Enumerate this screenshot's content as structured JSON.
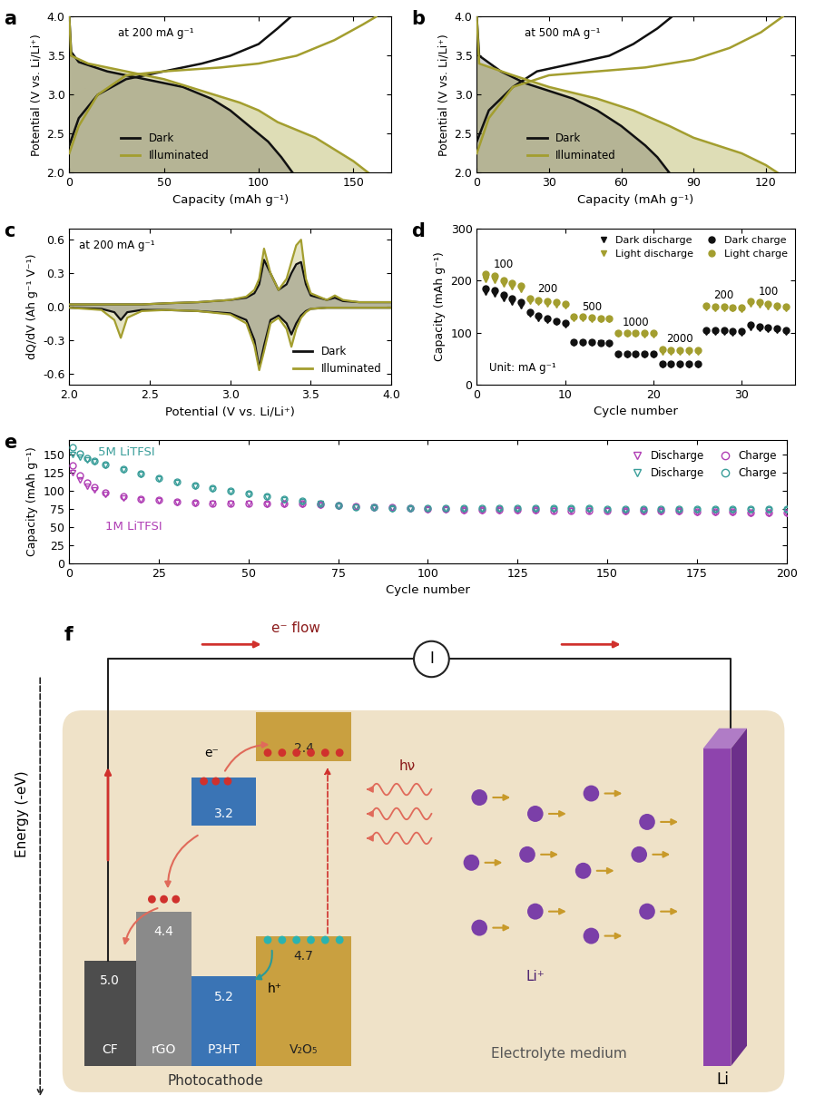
{
  "chart_data": [
    {
      "panel_label": "a",
      "type": "line",
      "x_label": "Capacity (mAh g⁻¹)",
      "y_label": "Potential (V vs. Li/Li⁺)",
      "annotation": "at 200 mA g⁻¹",
      "xlim": [
        0,
        170
      ],
      "xticks": [
        0,
        50,
        100,
        150
      ],
      "ylim": [
        2.0,
        4.0
      ],
      "yticks": [
        2.0,
        2.5,
        3.0,
        3.5,
        4.0
      ],
      "legend": "lower left",
      "series": [
        {
          "name": "Dark",
          "color": "#111111",
          "discharge": {
            "x": [
              0,
              1,
              5,
              20,
              40,
              60,
              75,
              85,
              95,
              105,
              112,
              118
            ],
            "values": [
              4.0,
              3.55,
              3.42,
              3.3,
              3.2,
              3.1,
              2.95,
              2.8,
              2.6,
              2.4,
              2.2,
              2.0
            ]
          },
          "charge": {
            "x": [
              0,
              5,
              15,
              30,
              50,
              70,
              85,
              100,
              110,
              117
            ],
            "values": [
              2.35,
              2.7,
              3.0,
              3.2,
              3.3,
              3.4,
              3.5,
              3.65,
              3.85,
              4.0
            ]
          }
        },
        {
          "name": "Illuminated",
          "color": "#a39e2f",
          "discharge": {
            "x": [
              0,
              1,
              10,
              30,
              50,
              70,
              90,
              100,
              110,
              120,
              130,
              140,
              150,
              158
            ],
            "values": [
              4.0,
              3.5,
              3.4,
              3.3,
              3.2,
              3.05,
              2.9,
              2.8,
              2.65,
              2.55,
              2.45,
              2.3,
              2.15,
              2.0
            ]
          },
          "charge": {
            "x": [
              0,
              5,
              15,
              30,
              50,
              80,
              100,
              120,
              140,
              155,
              162
            ],
            "values": [
              2.25,
              2.6,
              3.0,
              3.25,
              3.3,
              3.35,
              3.4,
              3.5,
              3.7,
              3.9,
              4.0
            ]
          }
        }
      ]
    },
    {
      "panel_label": "b",
      "type": "line",
      "x_label": "Capacity (mAh g⁻¹)",
      "y_label": "Potential (V vs. Li/Li⁺)",
      "annotation": "at 500 mA g⁻¹",
      "xlim": [
        0,
        132
      ],
      "xticks": [
        0,
        30,
        60,
        90,
        120
      ],
      "ylim": [
        2.0,
        4.0
      ],
      "yticks": [
        2.0,
        2.5,
        3.0,
        3.5,
        4.0
      ],
      "legend": "lower left",
      "series": [
        {
          "name": "Dark",
          "color": "#111111",
          "discharge": {
            "x": [
              0,
              1,
              10,
              20,
              30,
              40,
              50,
              60,
              70,
              75,
              80
            ],
            "values": [
              4.0,
              3.5,
              3.3,
              3.15,
              3.05,
              2.95,
              2.8,
              2.6,
              2.35,
              2.2,
              2.0
            ]
          },
          "charge": {
            "x": [
              0,
              5,
              15,
              25,
              40,
              55,
              65,
              75,
              81
            ],
            "values": [
              2.4,
              2.8,
              3.1,
              3.3,
              3.4,
              3.5,
              3.65,
              3.85,
              4.0
            ]
          }
        },
        {
          "name": "Illuminated",
          "color": "#a39e2f",
          "discharge": {
            "x": [
              0,
              1,
              15,
              30,
              50,
              65,
              80,
              90,
              100,
              110,
              120,
              125
            ],
            "values": [
              4.0,
              3.4,
              3.25,
              3.1,
              2.95,
              2.8,
              2.6,
              2.45,
              2.35,
              2.25,
              2.1,
              2.0
            ]
          },
          "charge": {
            "x": [
              0,
              5,
              15,
              30,
              50,
              70,
              90,
              105,
              118,
              127
            ],
            "values": [
              2.25,
              2.7,
              3.1,
              3.25,
              3.3,
              3.35,
              3.45,
              3.6,
              3.8,
              4.0
            ]
          }
        }
      ]
    },
    {
      "panel_label": "c",
      "type": "line",
      "x_label": "Potential (V vs. Li/Li⁺)",
      "y_label": "dQ/dV (Ah g⁻¹ V⁻¹)",
      "annotation": "at 200 mA g⁻¹",
      "xlim": [
        2.0,
        4.0
      ],
      "xticks": [
        2.0,
        2.5,
        3.0,
        3.5,
        4.0
      ],
      "ylim": [
        -0.7,
        0.7
      ],
      "yticks": [
        -0.6,
        -0.3,
        0.0,
        0.3,
        0.6
      ],
      "legend": "lower right",
      "series": [
        {
          "name": "Dark",
          "color": "#111111",
          "x": [
            2.0,
            2.2,
            2.28,
            2.32,
            2.36,
            2.45,
            2.6,
            2.8,
            3.0,
            3.1,
            3.15,
            3.18,
            3.21,
            3.25,
            3.3,
            3.35,
            3.38,
            3.41,
            3.44,
            3.47,
            3.5,
            3.6,
            3.65,
            3.7,
            3.8,
            4.0
          ],
          "charge_values": [
            0.02,
            0.02,
            0.02,
            0.02,
            0.02,
            0.02,
            0.03,
            0.04,
            0.06,
            0.08,
            0.12,
            0.2,
            0.42,
            0.3,
            0.15,
            0.2,
            0.3,
            0.38,
            0.4,
            0.2,
            0.1,
            0.06,
            0.08,
            0.05,
            0.04,
            0.04
          ],
          "discharge_values": [
            -0.01,
            -0.02,
            -0.05,
            -0.12,
            -0.05,
            -0.03,
            -0.03,
            -0.04,
            -0.06,
            -0.12,
            -0.3,
            -0.55,
            -0.35,
            -0.12,
            -0.08,
            -0.15,
            -0.25,
            -0.15,
            -0.08,
            -0.04,
            -0.02,
            -0.01,
            -0.01,
            -0.01,
            -0.01,
            -0.01
          ]
        },
        {
          "name": "Illuminated",
          "color": "#a39e2f",
          "x": [
            2.0,
            2.2,
            2.28,
            2.32,
            2.36,
            2.45,
            2.6,
            2.8,
            3.0,
            3.1,
            3.15,
            3.18,
            3.21,
            3.25,
            3.3,
            3.35,
            3.38,
            3.41,
            3.44,
            3.47,
            3.5,
            3.6,
            3.65,
            3.7,
            3.8,
            4.0
          ],
          "charge_values": [
            0.02,
            0.02,
            0.02,
            0.02,
            0.02,
            0.02,
            0.03,
            0.04,
            0.06,
            0.09,
            0.15,
            0.25,
            0.52,
            0.3,
            0.15,
            0.25,
            0.4,
            0.55,
            0.6,
            0.25,
            0.12,
            0.06,
            0.1,
            0.06,
            0.04,
            0.04
          ],
          "discharge_values": [
            -0.01,
            -0.03,
            -0.12,
            -0.28,
            -0.1,
            -0.04,
            -0.03,
            -0.04,
            -0.07,
            -0.15,
            -0.35,
            -0.57,
            -0.4,
            -0.15,
            -0.1,
            -0.2,
            -0.36,
            -0.2,
            -0.1,
            -0.05,
            -0.02,
            -0.01,
            -0.01,
            -0.01,
            -0.01,
            -0.01
          ]
        }
      ]
    },
    {
      "panel_label": "d",
      "type": "scatter",
      "x_label": "Cycle number",
      "y_label": "Capacity (mAh g⁻¹)",
      "annotation": "Unit: mA g⁻¹",
      "rate_labels": [
        100,
        200,
        500,
        1000,
        2000,
        200,
        100
      ],
      "xlim": [
        0,
        36
      ],
      "xticks": [
        0,
        10,
        20,
        30
      ],
      "ylim": [
        0,
        300
      ],
      "yticks": [
        0,
        100,
        200,
        300
      ],
      "legend": "upper right",
      "x": [
        1,
        2,
        3,
        4,
        5,
        6,
        7,
        8,
        9,
        10,
        11,
        12,
        13,
        14,
        15,
        16,
        17,
        18,
        19,
        20,
        21,
        22,
        23,
        24,
        25,
        26,
        27,
        28,
        29,
        30,
        31,
        32,
        33,
        34,
        35
      ],
      "series": [
        {
          "name": "Dark discharge",
          "color": "#111111",
          "marker": "triangle_down",
          "values": [
            178,
            175,
            165,
            158,
            152,
            136,
            128,
            124,
            120,
            115,
            80,
            80,
            80,
            80,
            79,
            58,
            58,
            58,
            58,
            57,
            38,
            38,
            38,
            38,
            38,
            102,
            102,
            101,
            100,
            100,
            110,
            108,
            106,
            104,
            102
          ]
        },
        {
          "name": "Light discharge",
          "color": "#a39e2f",
          "marker": "triangle_down",
          "values": [
            203,
            200,
            193,
            188,
            183,
            160,
            158,
            156,
            154,
            152,
            127,
            127,
            126,
            125,
            125,
            97,
            97,
            97,
            96,
            96,
            63,
            63,
            63,
            63,
            62,
            148,
            147,
            146,
            146,
            145,
            155,
            153,
            150,
            148,
            146
          ]
        },
        {
          "name": "Dark charge",
          "color": "#111111",
          "marker": "circle",
          "values": [
            185,
            182,
            172,
            165,
            158,
            140,
            132,
            127,
            122,
            118,
            82,
            82,
            82,
            81,
            80,
            60,
            60,
            60,
            60,
            59,
            40,
            40,
            40,
            40,
            40,
            105,
            105,
            104,
            103,
            103,
            115,
            112,
            110,
            108,
            105
          ]
        },
        {
          "name": "Light charge",
          "color": "#a39e2f",
          "marker": "circle",
          "values": [
            212,
            210,
            200,
            195,
            190,
            165,
            162,
            160,
            158,
            156,
            130,
            130,
            129,
            128,
            128,
            100,
            100,
            100,
            99,
            99,
            68,
            67,
            67,
            67,
            66,
            152,
            150,
            150,
            149,
            148,
            160,
            158,
            155,
            152,
            150
          ]
        }
      ]
    },
    {
      "panel_label": "e",
      "type": "scatter",
      "x_label": "Cycle number",
      "y_label": "Capacity (mAh g⁻¹)",
      "annotations": [
        "5M LiTFSI",
        "1M LiTFSI"
      ],
      "xlim": [
        0,
        200
      ],
      "xticks": [
        0,
        25,
        50,
        75,
        100,
        125,
        150,
        175,
        200
      ],
      "ylim": [
        0,
        170
      ],
      "yticks": [
        0,
        25,
        50,
        75,
        100,
        125,
        150
      ],
      "legend": "upper right",
      "x": [
        1,
        3,
        5,
        7,
        10,
        15,
        20,
        25,
        30,
        35,
        40,
        45,
        50,
        55,
        60,
        65,
        70,
        75,
        80,
        85,
        90,
        95,
        100,
        105,
        110,
        115,
        120,
        125,
        130,
        135,
        140,
        145,
        150,
        155,
        160,
        165,
        170,
        175,
        180,
        185,
        190,
        195,
        200
      ],
      "series": [
        {
          "name": "Discharge",
          "group": "1M LiTFSI",
          "color": "#b03fb5",
          "marker": "triangle_down",
          "values": [
            125,
            115,
            107,
            101,
            95,
            90,
            87,
            86,
            84,
            83,
            82,
            82,
            82,
            81,
            81,
            81,
            80,
            79,
            78,
            77,
            76,
            75,
            74,
            74,
            73,
            73,
            73,
            73,
            73,
            72,
            72,
            72,
            72,
            71,
            71,
            71,
            71,
            70,
            70,
            70,
            69,
            69,
            69
          ]
        },
        {
          "name": "Discharge",
          "group": "5M LiTFSI",
          "color": "#3a9e9a",
          "marker": "triangle_down",
          "values": [
            150,
            147,
            143,
            140,
            135,
            129,
            123,
            117,
            112,
            107,
            103,
            99,
            95,
            91,
            88,
            85,
            82,
            79,
            77,
            76,
            75,
            75,
            75,
            75,
            75,
            75,
            75,
            75,
            75,
            75,
            75,
            75,
            74,
            74,
            74,
            74,
            74,
            74,
            74,
            74,
            74,
            74,
            74
          ]
        },
        {
          "name": "Charge",
          "group": "1M LiTFSI",
          "color": "#b03fb5",
          "marker": "circle",
          "values": [
            135,
            122,
            112,
            105,
            98,
            92,
            89,
            87,
            85,
            84,
            83,
            83,
            83,
            82,
            82,
            82,
            81,
            80,
            79,
            78,
            77,
            76,
            75,
            75,
            74,
            74,
            74,
            74,
            74,
            73,
            73,
            73,
            73,
            72,
            72,
            72,
            72,
            71,
            71,
            71,
            70,
            70,
            70
          ]
        },
        {
          "name": "Charge",
          "group": "5M LiTFSI",
          "color": "#3a9e9a",
          "marker": "circle",
          "values": [
            160,
            152,
            146,
            142,
            137,
            130,
            124,
            118,
            113,
            108,
            104,
            100,
            96,
            92,
            89,
            86,
            83,
            80,
            78,
            77,
            76,
            76,
            76,
            76,
            76,
            76,
            76,
            76,
            76,
            76,
            76,
            76,
            75,
            75,
            75,
            75,
            75,
            75,
            75,
            75,
            75,
            75,
            75
          ]
        }
      ]
    }
  ],
  "diagram": {
    "panel_label": "f",
    "energy_axis": "Energy (-eV)",
    "circuit": {
      "electron_flow": "e⁻ flow",
      "meter": "I"
    },
    "photocathode": {
      "label": "Photocathode",
      "layers": [
        {
          "name": "CF",
          "levels": [
            5.0
          ]
        },
        {
          "name": "rGO",
          "levels": [
            4.4
          ]
        },
        {
          "name": "P3HT",
          "levels": [
            3.2,
            5.2
          ]
        },
        {
          "name": "V₂O₅",
          "levels": [
            2.4,
            4.7
          ]
        }
      ]
    },
    "carriers": {
      "electron": "e⁻",
      "hole": "h⁺",
      "photon": "hν"
    },
    "electrolyte": {
      "label": "Electrolyte medium",
      "ion": "Li⁺"
    },
    "anode": "Li"
  }
}
